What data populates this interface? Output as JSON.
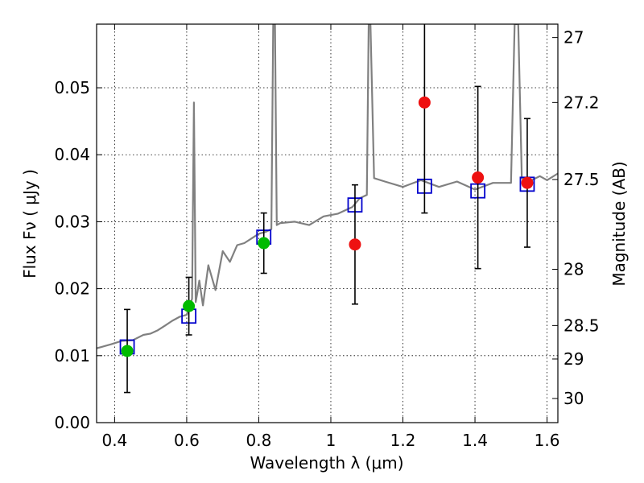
{
  "chart_data": {
    "type": "scatter",
    "xlabel": "Wavelength  λ (μm)",
    "ylabel": "Flux  Fν  ( μJy )",
    "y2label": "Magnitude (AB)",
    "xlim": [
      0.35,
      1.63
    ],
    "ylim": [
      0.0,
      0.0595
    ],
    "grid": true,
    "x_ticks": [
      0.4,
      0.6,
      0.8,
      1.0,
      1.2,
      1.4,
      1.6
    ],
    "x_tick_labels": [
      "0.4",
      "0.6",
      "0.8",
      "1",
      "1.2",
      "1.4",
      "1.6"
    ],
    "y_ticks": [
      0.0,
      0.01,
      0.02,
      0.03,
      0.04,
      0.05
    ],
    "y_tick_labels": [
      "0.00",
      "0.01",
      "0.02",
      "0.03",
      "0.04",
      "0.05"
    ],
    "y2_ticks": [
      {
        "label": "27",
        "flux": 0.0575
      },
      {
        "label": "27.2",
        "flux": 0.0478
      },
      {
        "label": "27.5",
        "flux": 0.0363
      },
      {
        "label": "28",
        "flux": 0.0229
      },
      {
        "label": "28.5",
        "flux": 0.0145
      },
      {
        "label": "29",
        "flux": 0.0095
      },
      {
        "label": "30",
        "flux": 0.0036
      }
    ],
    "series": [
      {
        "marker": "circle",
        "color": "#00bb00",
        "points": [
          {
            "x": 0.435,
            "y": 0.0107,
            "err": 0.0062
          },
          {
            "x": 0.606,
            "y": 0.0174,
            "err": 0.0043
          },
          {
            "x": 0.814,
            "y": 0.0268,
            "err": 0.0045
          }
        ]
      },
      {
        "marker": "circle",
        "color": "#ee1111",
        "points": [
          {
            "x": 1.067,
            "y": 0.0266,
            "err": 0.0089
          },
          {
            "x": 1.26,
            "y": 0.0478,
            "err": 0.0165
          },
          {
            "x": 1.408,
            "y": 0.0366,
            "err": 0.0136
          },
          {
            "x": 1.545,
            "y": 0.0358,
            "err": 0.0096
          }
        ]
      },
      {
        "marker": "square-open",
        "color": "#0000cc",
        "points": [
          {
            "x": 0.435,
            "y": 0.0113
          },
          {
            "x": 0.606,
            "y": 0.0159
          },
          {
            "x": 0.814,
            "y": 0.0277
          },
          {
            "x": 1.067,
            "y": 0.0325
          },
          {
            "x": 1.26,
            "y": 0.0353
          },
          {
            "x": 1.408,
            "y": 0.0346
          },
          {
            "x": 1.545,
            "y": 0.0356
          }
        ]
      },
      {
        "type": "line",
        "color": "#808080",
        "x": [
          0.35,
          0.39,
          0.42,
          0.45,
          0.48,
          0.5,
          0.52,
          0.54,
          0.56,
          0.58,
          0.6,
          0.615,
          0.62,
          0.625,
          0.63,
          0.635,
          0.645,
          0.66,
          0.68,
          0.7,
          0.72,
          0.74,
          0.76,
          0.78,
          0.8,
          0.82,
          0.835,
          0.84,
          0.845,
          0.85,
          0.86,
          0.9,
          0.94,
          0.98,
          1.02,
          1.06,
          1.08,
          1.1,
          1.105,
          1.11,
          1.12,
          1.15,
          1.2,
          1.25,
          1.3,
          1.35,
          1.4,
          1.45,
          1.5,
          1.51,
          1.52,
          1.53,
          1.55,
          1.58,
          1.6,
          1.63
        ],
        "y": [
          0.0111,
          0.0117,
          0.0122,
          0.0123,
          0.0131,
          0.0133,
          0.0138,
          0.0145,
          0.0152,
          0.0158,
          0.0161,
          0.0185,
          0.0478,
          0.018,
          0.0195,
          0.0212,
          0.0175,
          0.0235,
          0.0198,
          0.0256,
          0.024,
          0.0265,
          0.0268,
          0.0275,
          0.0282,
          0.0285,
          0.0289,
          0.0595,
          0.0595,
          0.0295,
          0.0298,
          0.03,
          0.0295,
          0.0308,
          0.0312,
          0.0322,
          0.0335,
          0.034,
          0.0595,
          0.0595,
          0.0365,
          0.036,
          0.0352,
          0.0362,
          0.0352,
          0.036,
          0.0348,
          0.0358,
          0.0358,
          0.0595,
          0.0595,
          0.0365,
          0.036,
          0.0368,
          0.0362,
          0.0372
        ]
      }
    ]
  }
}
